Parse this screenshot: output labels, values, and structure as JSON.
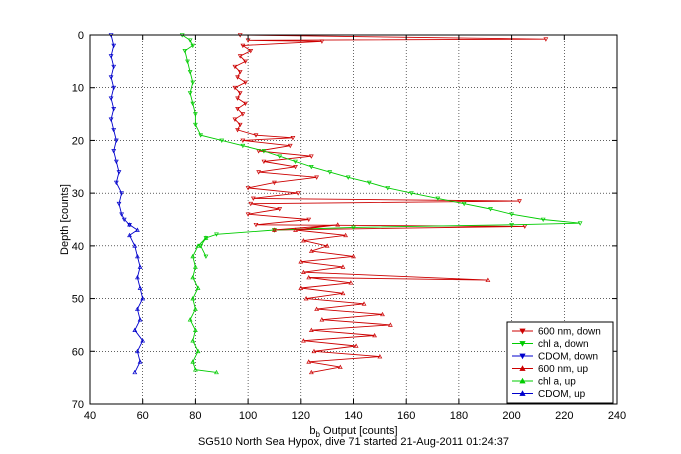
{
  "chart_data": {
    "type": "line",
    "xlabel_main": "b",
    "xlabel_sub": "b",
    "xlabel_rest": " Output [counts]",
    "ylabel": "Depth [counts]",
    "caption": "SG510 North Sea Hypox, dive 71 started 21-Aug-2011 01:24:37",
    "xlim": [
      40,
      240
    ],
    "ylim": [
      0,
      70
    ],
    "y_reversed": true,
    "grid": true,
    "xticks": [
      "40",
      "60",
      "80",
      "100",
      "120",
      "140",
      "160",
      "180",
      "200",
      "220",
      "240"
    ],
    "yticks": [
      "0",
      "10",
      "20",
      "30",
      "40",
      "50",
      "60",
      "70"
    ],
    "legend_position": "bottom-right",
    "series": [
      {
        "name": "600 nm, down",
        "color": "#cc0000",
        "marker": "triangle-down",
        "points": [
          [
            97,
            0
          ],
          [
            213,
            0.8
          ],
          [
            100,
            1
          ],
          [
            128,
            1.2
          ],
          [
            98,
            2
          ],
          [
            101,
            3
          ],
          [
            97,
            4
          ],
          [
            99,
            5
          ],
          [
            95,
            6
          ],
          [
            97,
            7
          ],
          [
            96,
            8
          ],
          [
            99,
            9
          ],
          [
            95,
            10
          ],
          [
            97,
            11
          ],
          [
            96,
            12
          ],
          [
            99,
            13
          ],
          [
            96,
            14
          ],
          [
            98,
            15
          ],
          [
            95,
            16
          ],
          [
            97,
            17
          ],
          [
            96,
            18
          ],
          [
            103,
            19
          ],
          [
            117,
            19.5
          ],
          [
            98,
            20
          ],
          [
            116,
            21
          ],
          [
            104,
            22
          ],
          [
            124,
            23
          ],
          [
            106,
            24
          ],
          [
            118,
            25
          ],
          [
            104,
            26
          ],
          [
            126,
            27
          ],
          [
            110,
            28
          ],
          [
            100,
            29
          ],
          [
            119,
            30
          ],
          [
            102,
            31
          ],
          [
            203,
            31.5
          ],
          [
            101,
            32
          ],
          [
            112,
            33
          ],
          [
            100,
            34
          ],
          [
            123,
            35
          ],
          [
            103,
            36
          ],
          [
            205,
            36.3
          ],
          [
            110,
            37
          ]
        ]
      },
      {
        "name": "chl a, down",
        "color": "#00cc00",
        "marker": "triangle-down",
        "points": [
          [
            75,
            0
          ],
          [
            78,
            1
          ],
          [
            79,
            2
          ],
          [
            76,
            3
          ],
          [
            77,
            5
          ],
          [
            78,
            7
          ],
          [
            79,
            9
          ],
          [
            78,
            11
          ],
          [
            79,
            13
          ],
          [
            80,
            15
          ],
          [
            80,
            17
          ],
          [
            82,
            19
          ],
          [
            90,
            20
          ],
          [
            98,
            21
          ],
          [
            106,
            22
          ],
          [
            112,
            23
          ],
          [
            118,
            24
          ],
          [
            124,
            25
          ],
          [
            131,
            26
          ],
          [
            138,
            27
          ],
          [
            146,
            28
          ],
          [
            153,
            29
          ],
          [
            162,
            30
          ],
          [
            172,
            31
          ],
          [
            182,
            32
          ],
          [
            192,
            33
          ],
          [
            200,
            34
          ],
          [
            212,
            35
          ],
          [
            226,
            35.7
          ],
          [
            200,
            36
          ],
          [
            140,
            36.5
          ],
          [
            110,
            37
          ],
          [
            88,
            37.8
          ],
          [
            84,
            38.5
          ],
          [
            82,
            40
          ],
          [
            84,
            42
          ]
        ]
      },
      {
        "name": "CDOM, down",
        "color": "#0000cc",
        "marker": "triangle-down",
        "points": [
          [
            48,
            0
          ],
          [
            49,
            2
          ],
          [
            48,
            4
          ],
          [
            49,
            6
          ],
          [
            48,
            8
          ],
          [
            49,
            10
          ],
          [
            48,
            12
          ],
          [
            49,
            14
          ],
          [
            48,
            16
          ],
          [
            49,
            18
          ],
          [
            50,
            20
          ],
          [
            49,
            22
          ],
          [
            50,
            24
          ],
          [
            51,
            26
          ],
          [
            50,
            28
          ],
          [
            52,
            30
          ],
          [
            51,
            32
          ],
          [
            52,
            34
          ],
          [
            53,
            35
          ],
          [
            55,
            36
          ]
        ]
      },
      {
        "name": "600 nm, up",
        "color": "#cc0000",
        "marker": "triangle-up",
        "points": [
          [
            124,
            64
          ],
          [
            135,
            63
          ],
          [
            123,
            62
          ],
          [
            150,
            61
          ],
          [
            125,
            60
          ],
          [
            141,
            59
          ],
          [
            121,
            58
          ],
          [
            148,
            57
          ],
          [
            124,
            56
          ],
          [
            154,
            55
          ],
          [
            128,
            54
          ],
          [
            151,
            53
          ],
          [
            126,
            52
          ],
          [
            144,
            51
          ],
          [
            122,
            50
          ],
          [
            136,
            49
          ],
          [
            120,
            48
          ],
          [
            139,
            47
          ],
          [
            123,
            46
          ],
          [
            191,
            46.5
          ],
          [
            121,
            45
          ],
          [
            136,
            44
          ],
          [
            120,
            43
          ],
          [
            140,
            42
          ],
          [
            124,
            41
          ],
          [
            130,
            40
          ],
          [
            121,
            39
          ],
          [
            137,
            38
          ],
          [
            118,
            37
          ],
          [
            134,
            36
          ],
          [
            110,
            37
          ]
        ]
      },
      {
        "name": "chl a, up",
        "color": "#00cc00",
        "marker": "triangle-up",
        "points": [
          [
            88,
            64
          ],
          [
            80,
            63.5
          ],
          [
            79,
            62
          ],
          [
            81,
            60
          ],
          [
            79,
            58
          ],
          [
            80,
            56
          ],
          [
            78,
            54
          ],
          [
            80,
            52
          ],
          [
            79,
            50
          ],
          [
            81,
            48
          ],
          [
            79,
            46
          ],
          [
            80,
            44
          ],
          [
            79,
            42
          ],
          [
            81,
            40
          ],
          [
            84,
            38.5
          ]
        ]
      },
      {
        "name": "CDOM, up",
        "color": "#0000cc",
        "marker": "triangle-up",
        "points": [
          [
            57,
            64
          ],
          [
            59,
            62
          ],
          [
            58,
            60
          ],
          [
            60,
            58
          ],
          [
            57,
            56
          ],
          [
            59,
            54
          ],
          [
            58,
            52
          ],
          [
            60,
            50
          ],
          [
            59,
            48
          ],
          [
            58,
            46
          ],
          [
            59,
            44
          ],
          [
            58,
            42
          ],
          [
            57,
            40
          ],
          [
            55,
            38
          ],
          [
            58,
            37
          ],
          [
            55,
            36
          ]
        ]
      }
    ]
  }
}
